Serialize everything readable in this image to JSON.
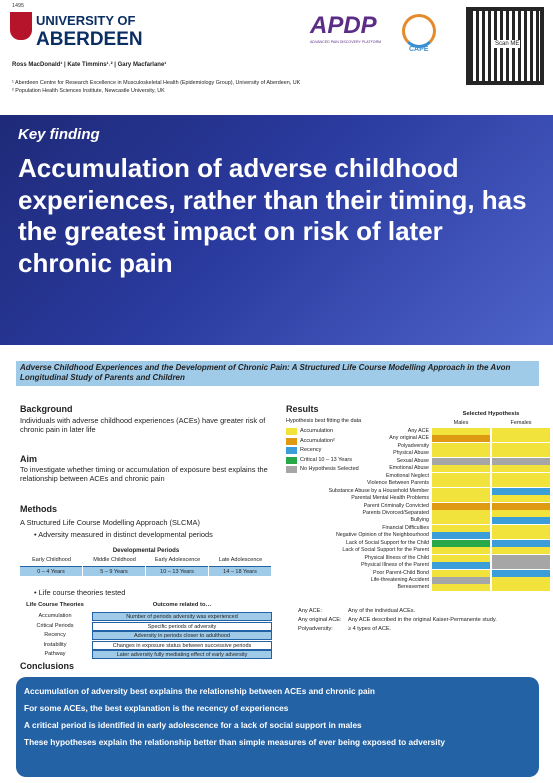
{
  "header": {
    "year": "1495",
    "university": [
      "UNIVERSITY OF",
      "ABERDEEN"
    ],
    "apdp": "APDP",
    "apdp_sub": "ADVANCED PAIN DISCOVERY PLATFORM",
    "cape": "CAPE",
    "qr_label": "Scan ME",
    "authors": "Ross MacDonald¹ | Kate Timmins¹˒² | Gary Macfarlane¹",
    "affiliations": [
      "¹ Aberdeen Centre for Research Excellence in Musculoskeletal Health (Epidemiology Group), University of Aberdeen, UK",
      "² Population Health Sciences Institute, Newcastle University, UK"
    ]
  },
  "banner": {
    "kicker": "Key finding",
    "title": "Accumulation of adverse childhood experiences, rather than their timing, has the greatest impact on risk of later chronic pain"
  },
  "study_title": "Adverse Childhood Experiences and the Development of Chronic Pain: A Structured Life Course Modelling Approach in the Avon Longitudinal Study of Parents and Children",
  "background": {
    "heading": "Background",
    "text": "Individuals with adverse childhood experiences (ACEs) have greater risk of chronic pain in later life"
  },
  "aim": {
    "heading": "Aim",
    "text": "To investigate whether timing or accumulation of exposure best explains the relationship between ACEs and chronic pain"
  },
  "methods": {
    "heading": "Methods",
    "text": "A Structured Life Course Modelling Approach (SLCMA)",
    "bullet1": "Adversity measured in distinct developmental periods",
    "periods_title": "Developmental Periods",
    "periods": [
      [
        "Early Childhood",
        "0 – 4 Years"
      ],
      [
        "Middle Childhood",
        "5 – 9 Years"
      ],
      [
        "Early Adolescence",
        "10 – 13 Years"
      ],
      [
        "Late Adolescence",
        "14 – 18 Years"
      ]
    ],
    "bullet2": "Life course theories tested",
    "theories_header": [
      "Life Course Theories",
      "Outcome related to…"
    ],
    "theories": [
      [
        "Accumulation",
        "Number of periods adversity was experienced"
      ],
      [
        "Critical Periods",
        "Specific periods of adversity"
      ],
      [
        "Recency",
        "Adversity in periods closer to adulthood"
      ],
      [
        "Instability",
        "Changes in exposure status between successive periods"
      ],
      [
        "Pathway",
        "Later adversity fully mediating effect of early adversity"
      ]
    ]
  },
  "results": {
    "heading": "Results",
    "legend_title": "Hypothesis best fitting the data",
    "legend": [
      {
        "name": "Accumulation",
        "color": "#f2e33c"
      },
      {
        "name": "Accumulation²",
        "color": "#dd9a12"
      },
      {
        "name": "Recency",
        "color": "#3b9ed8"
      },
      {
        "name": "Critical 10 – 13 Years",
        "color": "#29a84a"
      },
      {
        "name": "No Hypothesis Selected",
        "color": "#a6a6a6"
      }
    ],
    "selected_title": "Selected Hypothesis",
    "columns": [
      "Males",
      "Females"
    ],
    "rows": [
      [
        "Any ACE",
        "#f2e33c",
        "#f2e33c"
      ],
      [
        "Any original ACE",
        "#dd9a12",
        "#f2e33c"
      ],
      [
        "Polyadversity",
        "#f2e33c",
        "#f2e33c"
      ],
      [
        "Physical Abuse",
        "#f2e33c",
        "#f2e33c"
      ],
      [
        "Sexual Abuse",
        "#a6a6a6",
        "#a6a6a6"
      ],
      [
        "Emotional Abuse",
        "#f2e33c",
        "#f2e33c"
      ],
      [
        "Emotional Neglect",
        "#f2e33c",
        "#f2e33c"
      ],
      [
        "Violence Between Parents",
        "#f2e33c",
        "#f2e33c"
      ],
      [
        "Substance Abuse by a Household Member",
        "#f2e33c",
        "#3b9ed8"
      ],
      [
        "Parental Mental Health Problems",
        "#f2e33c",
        "#f2e33c"
      ],
      [
        "Parent Criminally Convicted",
        "#dd9a12",
        "#dd9a12"
      ],
      [
        "Parents Divorced/Separated",
        "#f2e33c",
        "#f2e33c"
      ],
      [
        "Bullying",
        "#f2e33c",
        "#3b9ed8"
      ],
      [
        "Financial Difficulties",
        "#f2e33c",
        "#f2e33c"
      ],
      [
        "Negative Opinion of the Neighbourhood",
        "#3b9ed8",
        "#f2e33c"
      ],
      [
        "Lack of Social Support for the Child",
        "#29a84a",
        "#3b9ed8"
      ],
      [
        "Lack of Social Support for the Parent",
        "#f2e33c",
        "#f2e33c"
      ],
      [
        "Physical Illness of the Child",
        "#f2e33c",
        "#a6a6a6"
      ],
      [
        "Physical Illness of the Parent",
        "#3b9ed8",
        "#a6a6a6"
      ],
      [
        "Poor Parent-Child Bond",
        "#f2e33c",
        "#3b9ed8"
      ],
      [
        "Life-threatening Accident",
        "#a6a6a6",
        "#f2e33c"
      ],
      [
        "Bereavement",
        "#f2e33c",
        "#f2e33c"
      ]
    ],
    "definitions": [
      [
        "Any ACE:",
        "Any of the individual ACEs."
      ],
      [
        "Any original ACE:",
        "Any ACE described in the original Kaiser-Permanente study."
      ],
      [
        "Polyadversity:",
        "≥ 4 types of ACE."
      ]
    ]
  },
  "conclusions": {
    "heading": "Conclusions",
    "items": [
      "Accumulation of adversity best explains the relationship between ACEs and chronic pain",
      "For some ACEs, the best explanation is the recency of experiences",
      "A critical period is identified in early adolescence for a lack of social support in males",
      "These hypotheses explain the relationship better than simple measures of ever being exposed to adversity"
    ]
  }
}
